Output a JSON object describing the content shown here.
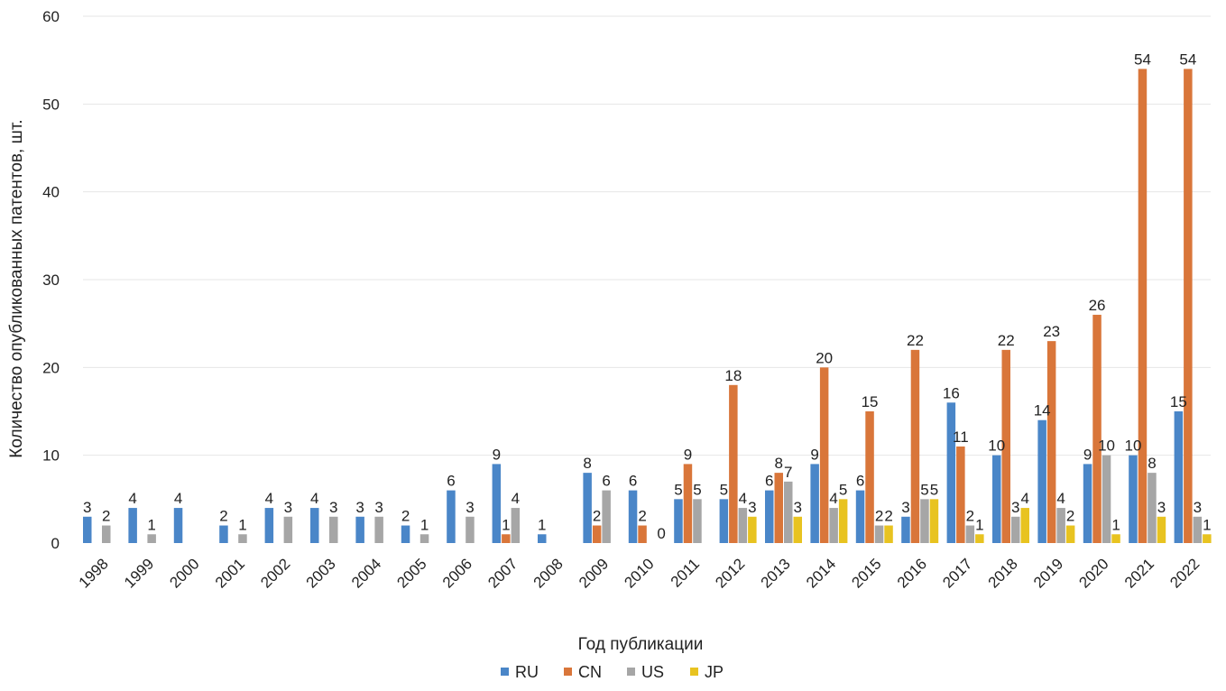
{
  "chart_data": {
    "type": "bar",
    "title": "",
    "xlabel": "Год публикации",
    "ylabel": "Количество опубликованных патентов, шт.",
    "ylim": [
      0,
      60
    ],
    "yticks": [
      "0",
      "10",
      "20",
      "30",
      "40",
      "50",
      "60"
    ],
    "grid": true,
    "legend_position": "bottom",
    "categories": [
      "1998",
      "1999",
      "2000",
      "2001",
      "2002",
      "2003",
      "2004",
      "2005",
      "2006",
      "2007",
      "2008",
      "2009",
      "2010",
      "2011",
      "2012",
      "2013",
      "2014",
      "2015",
      "2016",
      "2017",
      "2018",
      "2019",
      "2020",
      "2021",
      "2022"
    ],
    "series": [
      {
        "name": "RU",
        "color": "#4a86c8",
        "values": [
          3,
          4,
          4,
          2,
          4,
          4,
          3,
          2,
          6,
          9,
          1,
          8,
          6,
          5,
          5,
          6,
          9,
          6,
          3,
          16,
          10,
          14,
          9,
          10,
          15
        ]
      },
      {
        "name": "CN",
        "color": "#d9763a",
        "values": [
          null,
          null,
          null,
          null,
          null,
          null,
          null,
          null,
          null,
          1,
          null,
          2,
          2,
          9,
          18,
          8,
          20,
          15,
          22,
          11,
          22,
          23,
          26,
          54,
          54
        ]
      },
      {
        "name": "US",
        "color": "#a6a6a6",
        "values": [
          2,
          1,
          null,
          1,
          3,
          3,
          3,
          1,
          3,
          4,
          null,
          6,
          null,
          5,
          4,
          7,
          4,
          2,
          5,
          2,
          3,
          4,
          10,
          8,
          3
        ]
      },
      {
        "name": "JP",
        "color": "#e8c320",
        "values": [
          null,
          null,
          null,
          null,
          null,
          null,
          null,
          null,
          null,
          null,
          null,
          null,
          0,
          null,
          3,
          3,
          5,
          2,
          5,
          1,
          4,
          2,
          1,
          3,
          1
        ]
      }
    ]
  }
}
